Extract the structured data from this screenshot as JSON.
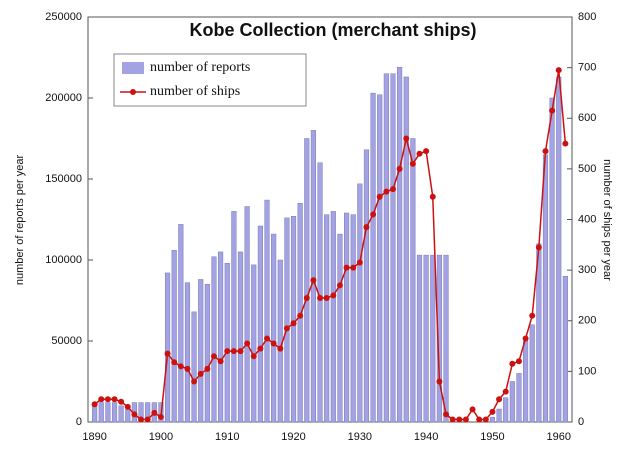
{
  "chart_data": {
    "type": "bar-line",
    "title": "Kobe Collection (merchant ships)",
    "ylabel": "number of reports per year",
    "y2label": "number of ships per year",
    "x": [
      1890,
      1891,
      1892,
      1893,
      1894,
      1895,
      1896,
      1897,
      1898,
      1899,
      1900,
      1901,
      1902,
      1903,
      1904,
      1905,
      1906,
      1907,
      1908,
      1909,
      1910,
      1911,
      1912,
      1913,
      1914,
      1915,
      1916,
      1917,
      1918,
      1919,
      1920,
      1921,
      1922,
      1923,
      1924,
      1925,
      1926,
      1927,
      1928,
      1929,
      1930,
      1931,
      1932,
      1933,
      1934,
      1935,
      1936,
      1937,
      1938,
      1939,
      1940,
      1941,
      1942,
      1943,
      1944,
      1945,
      1946,
      1947,
      1948,
      1949,
      1950,
      1951,
      1952,
      1953,
      1954,
      1955,
      1956,
      1957,
      1958,
      1959,
      1960,
      1961
    ],
    "series": [
      {
        "name": "number of reports",
        "type": "bar",
        "color": "#a3a3e3",
        "values": [
          10000,
          12000,
          12000,
          12000,
          10000,
          8000,
          12000,
          12000,
          12000,
          12000,
          12000,
          92000,
          106000,
          122000,
          86000,
          68000,
          88000,
          85000,
          102000,
          105000,
          98000,
          130000,
          105000,
          133000,
          97000,
          121000,
          137000,
          116000,
          100000,
          126000,
          127000,
          135000,
          175000,
          180000,
          160000,
          128000,
          130000,
          116000,
          129000,
          128000,
          147000,
          168000,
          203000,
          202000,
          215000,
          215000,
          219000,
          213000,
          175000,
          103000,
          103000,
          103000,
          103000,
          103000,
          0,
          0,
          0,
          0,
          0,
          0,
          3000,
          8000,
          15000,
          25000,
          30000,
          50000,
          60000,
          110000,
          165000,
          200000,
          213000,
          90000
        ]
      },
      {
        "name": "number of ships",
        "type": "line",
        "axis": "y2",
        "color": "#cc1111",
        "values": [
          35,
          45,
          45,
          45,
          40,
          30,
          15,
          5,
          5,
          18,
          10,
          135,
          118,
          110,
          105,
          80,
          95,
          105,
          130,
          120,
          140,
          140,
          140,
          155,
          130,
          145,
          165,
          155,
          145,
          185,
          195,
          210,
          245,
          280,
          245,
          245,
          250,
          270,
          305,
          305,
          315,
          385,
          410,
          445,
          455,
          460,
          500,
          560,
          510,
          530,
          535,
          445,
          80,
          15,
          5,
          5,
          5,
          25,
          5,
          5,
          20,
          45,
          60,
          115,
          120,
          165,
          210,
          345,
          535,
          615,
          695,
          550
        ]
      }
    ],
    "xlim": [
      1889,
      1962
    ],
    "xticks": [
      1890,
      1900,
      1910,
      1920,
      1930,
      1940,
      1950,
      1960
    ],
    "ylim": [
      0,
      250000
    ],
    "yticks": [
      0,
      50000,
      100000,
      150000,
      200000,
      250000
    ],
    "y2lim": [
      0,
      800
    ],
    "y2ticks": [
      0,
      100,
      200,
      300,
      400,
      500,
      600,
      700,
      800
    ],
    "legend": "upper left"
  }
}
